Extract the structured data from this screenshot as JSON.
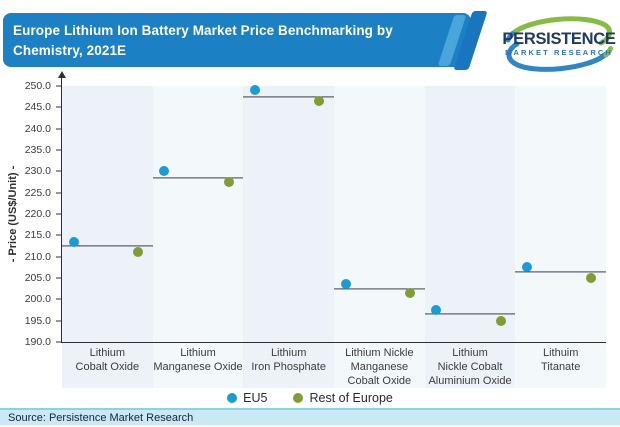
{
  "header": {
    "title": "Europe Lithium Ion Battery Market Price Benchmarking by Chemistry, 2021E",
    "logo": {
      "line1": "PERSISTENCE",
      "line2": "MARKET RESEARCH"
    }
  },
  "chart_data": {
    "type": "scatter",
    "title": "Europe Lithium Ion Battery Market Price Benchmarking by Chemistry, 2021E",
    "categories": [
      "Lithium Cobalt Oxide",
      "Lithium Manganese Oxide",
      "Lithium Iron Phosphate",
      "Lithium Nickle Manganese Cobalt Oxide",
      "Lithium Nickle Cobalt Aluminium Oxide",
      "Lithuim Titanate"
    ],
    "category_lines": [
      [
        "Lithium",
        "Cobalt Oxide"
      ],
      [
        "Lithium",
        "Manganese Oxide"
      ],
      [
        "Lithium",
        "Iron Phosphate"
      ],
      [
        "Lithium Nickle",
        "Manganese",
        "Cobalt Oxide"
      ],
      [
        "Lithium",
        "Nickle Cobalt",
        "Aluminium Oxide"
      ],
      [
        "Lithuim",
        "Titanate"
      ]
    ],
    "series": [
      {
        "name": "EU5",
        "color": "#1a9cd8",
        "values": [
          213.5,
          230.0,
          249.0,
          203.5,
          197.5,
          207.5
        ]
      },
      {
        "name": "Rest of Europe",
        "color": "#7f9d33",
        "values": [
          211.0,
          227.5,
          246.5,
          201.5,
          195.0,
          205.0
        ]
      }
    ],
    "avg_lines": [
      212.5,
      228.5,
      247.5,
      202.5,
      196.5,
      206.5
    ],
    "xlabel": "",
    "ylabel": "- Price (US$/Unit) -",
    "ylim": [
      190.0,
      250.0
    ],
    "ytick_step": 5.0,
    "grid": false,
    "legend_position": "bottom"
  },
  "legend": {
    "items": [
      {
        "label": "EU5",
        "color": "#1a9cd8"
      },
      {
        "label": "Rest of Europe",
        "color": "#7f9d33"
      }
    ]
  },
  "footer": {
    "source": "Source: Persistence Market Research"
  },
  "colors": {
    "header_bg": "#1c80c5",
    "slash_light": "#4aa5da",
    "slash_dark": "#1a75c0",
    "band_odd": "#edf1f8",
    "band_even": "#f3f8fb",
    "axis": "#2f2f2f",
    "avg_line": "#3b3f47",
    "eu5": "#1a9cd8",
    "rest_of_europe": "#7f9d33",
    "logo_green": "#86bc41",
    "logo_blue": "#2e86c6",
    "footer_bg": "#c9e9f7"
  }
}
